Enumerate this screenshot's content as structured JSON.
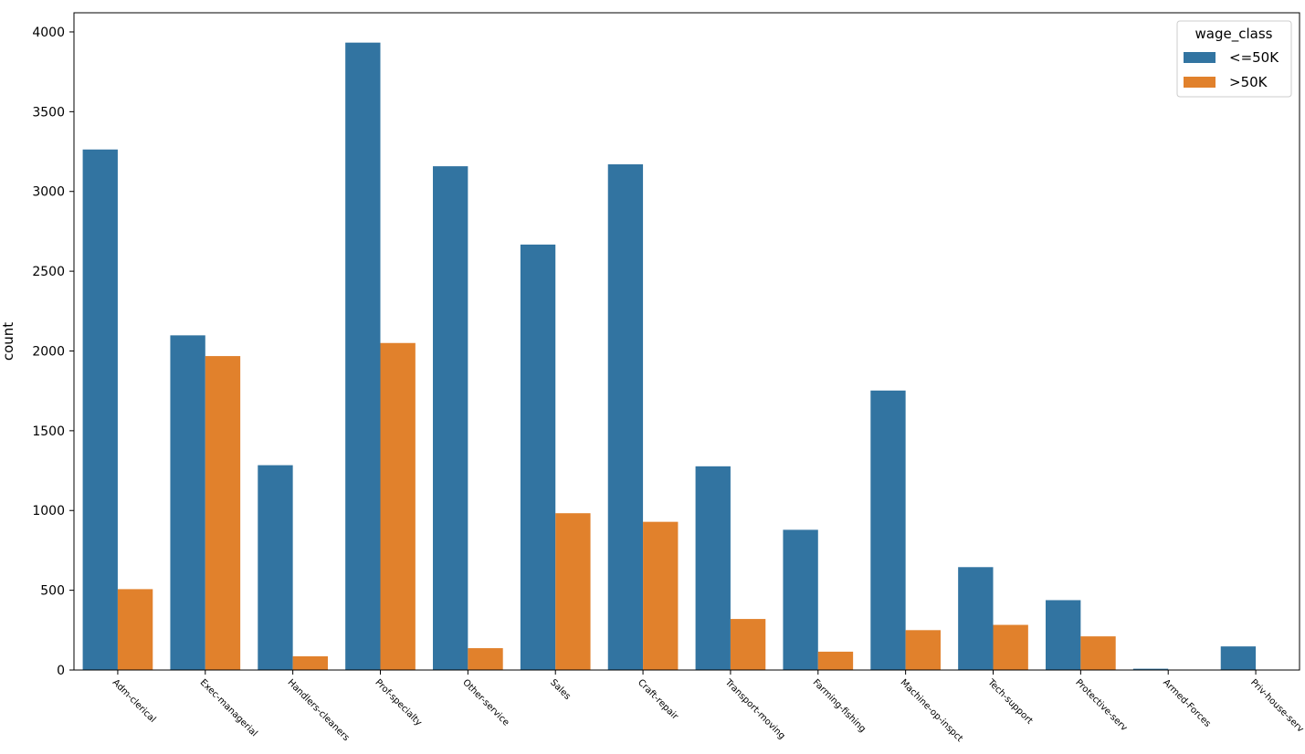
{
  "chart_data": {
    "type": "bar",
    "title": "",
    "xlabel": "",
    "ylabel": "count",
    "ylim": [
      0,
      4120
    ],
    "yticks": [
      0,
      500,
      1000,
      1500,
      2000,
      2500,
      3000,
      3500,
      4000
    ],
    "categories": [
      "Adm-clerical",
      "Exec-managerial",
      "Handlers-cleaners",
      "Prof-specialty",
      "Other-service",
      "Sales",
      "Craft-repair",
      "Transport-moving",
      "Farming-fishing",
      "Machine-op-inspct",
      "Tech-support",
      "Protective-serv",
      "Armed-Forces",
      "Priv-house-serv"
    ],
    "legend": {
      "title": "wage_class",
      "placement": "top-right"
    },
    "grid": false,
    "series": [
      {
        "name": "<=50K",
        "color": "#3274a1",
        "values": [
          3263,
          2098,
          1284,
          3933,
          3158,
          2667,
          3170,
          1277,
          879,
          1752,
          645,
          438,
          8,
          148
        ]
      },
      {
        "name": ">50K",
        "color": "#e1812c",
        "values": [
          507,
          1968,
          86,
          2050,
          137,
          983,
          929,
          320,
          115,
          250,
          283,
          211,
          1,
          1
        ]
      }
    ]
  }
}
